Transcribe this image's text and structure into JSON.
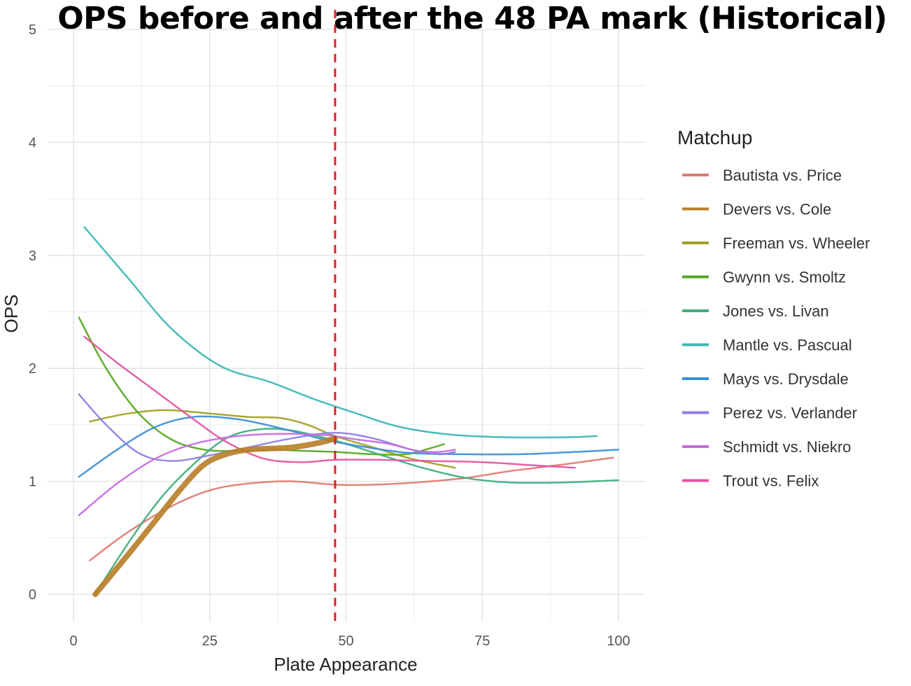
{
  "chart_data": {
    "type": "line",
    "title": "OPS before and after the 48 PA mark (Historical)",
    "xlabel": "Plate Appearance",
    "ylabel": "OPS",
    "xlim": [
      0,
      100
    ],
    "ylim": [
      0,
      5
    ],
    "x_ticks": [
      "0",
      "25",
      "50",
      "75",
      "100"
    ],
    "y_ticks": [
      "0",
      "1",
      "2",
      "3",
      "4",
      "5"
    ],
    "grid": true,
    "legend_title": "Matchup",
    "legend_position": "right",
    "reference_line": {
      "x": 48,
      "style": "dashed",
      "color": "#e0202a"
    },
    "series": [
      {
        "name": "Bautista vs. Price",
        "color": "#e07a72",
        "width": 2.5,
        "points": [
          [
            3,
            0.3
          ],
          [
            10,
            0.55
          ],
          [
            18,
            0.78
          ],
          [
            25,
            0.92
          ],
          [
            32,
            0.98
          ],
          [
            40,
            1.0
          ],
          [
            48,
            0.97
          ],
          [
            55,
            0.97
          ],
          [
            63,
            0.99
          ],
          [
            72,
            1.03
          ],
          [
            80,
            1.09
          ],
          [
            90,
            1.15
          ],
          [
            99,
            1.21
          ]
        ]
      },
      {
        "name": "Devers vs. Cole",
        "color": "#b9802a",
        "width": 8,
        "points": [
          [
            4,
            0.0
          ],
          [
            10,
            0.35
          ],
          [
            15,
            0.65
          ],
          [
            20,
            0.95
          ],
          [
            24,
            1.15
          ],
          [
            28,
            1.24
          ],
          [
            32,
            1.28
          ],
          [
            36,
            1.29
          ],
          [
            40,
            1.3
          ],
          [
            45,
            1.34
          ],
          [
            48,
            1.38
          ]
        ]
      },
      {
        "name": "Freeman vs. Wheeler",
        "color": "#a0a020",
        "width": 2.5,
        "points": [
          [
            3,
            1.53
          ],
          [
            10,
            1.6
          ],
          [
            17,
            1.63
          ],
          [
            25,
            1.6
          ],
          [
            32,
            1.57
          ],
          [
            38,
            1.56
          ],
          [
            43,
            1.5
          ],
          [
            48,
            1.4
          ],
          [
            55,
            1.3
          ],
          [
            62,
            1.2
          ],
          [
            70,
            1.12
          ]
        ]
      },
      {
        "name": "Gwynn vs. Smoltz",
        "color": "#55a820",
        "width": 2.5,
        "points": [
          [
            1,
            2.45
          ],
          [
            6,
            2.0
          ],
          [
            12,
            1.6
          ],
          [
            18,
            1.37
          ],
          [
            24,
            1.28
          ],
          [
            30,
            1.27
          ],
          [
            36,
            1.28
          ],
          [
            42,
            1.27
          ],
          [
            48,
            1.26
          ],
          [
            55,
            1.24
          ],
          [
            61,
            1.24
          ],
          [
            66,
            1.3
          ],
          [
            68,
            1.33
          ]
        ]
      },
      {
        "name": "Jones vs. Livan",
        "color": "#3dae7c",
        "width": 2.5,
        "points": [
          [
            4,
            0.0
          ],
          [
            10,
            0.45
          ],
          [
            16,
            0.85
          ],
          [
            22,
            1.15
          ],
          [
            28,
            1.38
          ],
          [
            34,
            1.46
          ],
          [
            40,
            1.45
          ],
          [
            48,
            1.36
          ],
          [
            56,
            1.24
          ],
          [
            64,
            1.12
          ],
          [
            72,
            1.03
          ],
          [
            80,
            0.99
          ],
          [
            90,
            0.99
          ],
          [
            100,
            1.01
          ]
        ]
      },
      {
        "name": "Mantle vs. Pascual",
        "color": "#3cb6b3",
        "width": 2.5,
        "points": [
          [
            2,
            3.25
          ],
          [
            10,
            2.8
          ],
          [
            18,
            2.35
          ],
          [
            27,
            2.02
          ],
          [
            36,
            1.88
          ],
          [
            44,
            1.73
          ],
          [
            52,
            1.6
          ],
          [
            60,
            1.48
          ],
          [
            70,
            1.41
          ],
          [
            80,
            1.39
          ],
          [
            90,
            1.39
          ],
          [
            96,
            1.4
          ]
        ]
      },
      {
        "name": "Mays vs. Drysdale",
        "color": "#3a8fd8",
        "width": 2.5,
        "points": [
          [
            1,
            1.04
          ],
          [
            8,
            1.28
          ],
          [
            15,
            1.48
          ],
          [
            22,
            1.57
          ],
          [
            30,
            1.55
          ],
          [
            38,
            1.47
          ],
          [
            46,
            1.37
          ],
          [
            54,
            1.3
          ],
          [
            62,
            1.25
          ],
          [
            72,
            1.24
          ],
          [
            82,
            1.24
          ],
          [
            92,
            1.26
          ],
          [
            100,
            1.28
          ]
        ]
      },
      {
        "name": "Perez vs. Verlander",
        "color": "#8c7ee6",
        "width": 2.5,
        "points": [
          [
            1,
            1.77
          ],
          [
            6,
            1.5
          ],
          [
            12,
            1.25
          ],
          [
            18,
            1.18
          ],
          [
            25,
            1.23
          ],
          [
            32,
            1.3
          ],
          [
            40,
            1.38
          ],
          [
            48,
            1.43
          ],
          [
            55,
            1.38
          ],
          [
            62,
            1.28
          ],
          [
            67,
            1.24
          ],
          [
            70,
            1.26
          ]
        ]
      },
      {
        "name": "Schmidt vs. Niekro",
        "color": "#c86ae2",
        "width": 2.5,
        "points": [
          [
            1,
            0.7
          ],
          [
            8,
            0.98
          ],
          [
            15,
            1.2
          ],
          [
            22,
            1.33
          ],
          [
            30,
            1.4
          ],
          [
            38,
            1.42
          ],
          [
            46,
            1.41
          ],
          [
            52,
            1.37
          ],
          [
            58,
            1.33
          ],
          [
            63,
            1.27
          ],
          [
            67,
            1.26
          ],
          [
            70,
            1.28
          ]
        ]
      },
      {
        "name": "Trout vs. Felix",
        "color": "#e354a2",
        "width": 2.5,
        "points": [
          [
            2,
            2.28
          ],
          [
            8,
            2.05
          ],
          [
            15,
            1.8
          ],
          [
            22,
            1.55
          ],
          [
            28,
            1.35
          ],
          [
            35,
            1.2
          ],
          [
            42,
            1.17
          ],
          [
            48,
            1.19
          ],
          [
            56,
            1.19
          ],
          [
            65,
            1.18
          ],
          [
            75,
            1.17
          ],
          [
            85,
            1.14
          ],
          [
            92,
            1.12
          ]
        ]
      }
    ]
  }
}
